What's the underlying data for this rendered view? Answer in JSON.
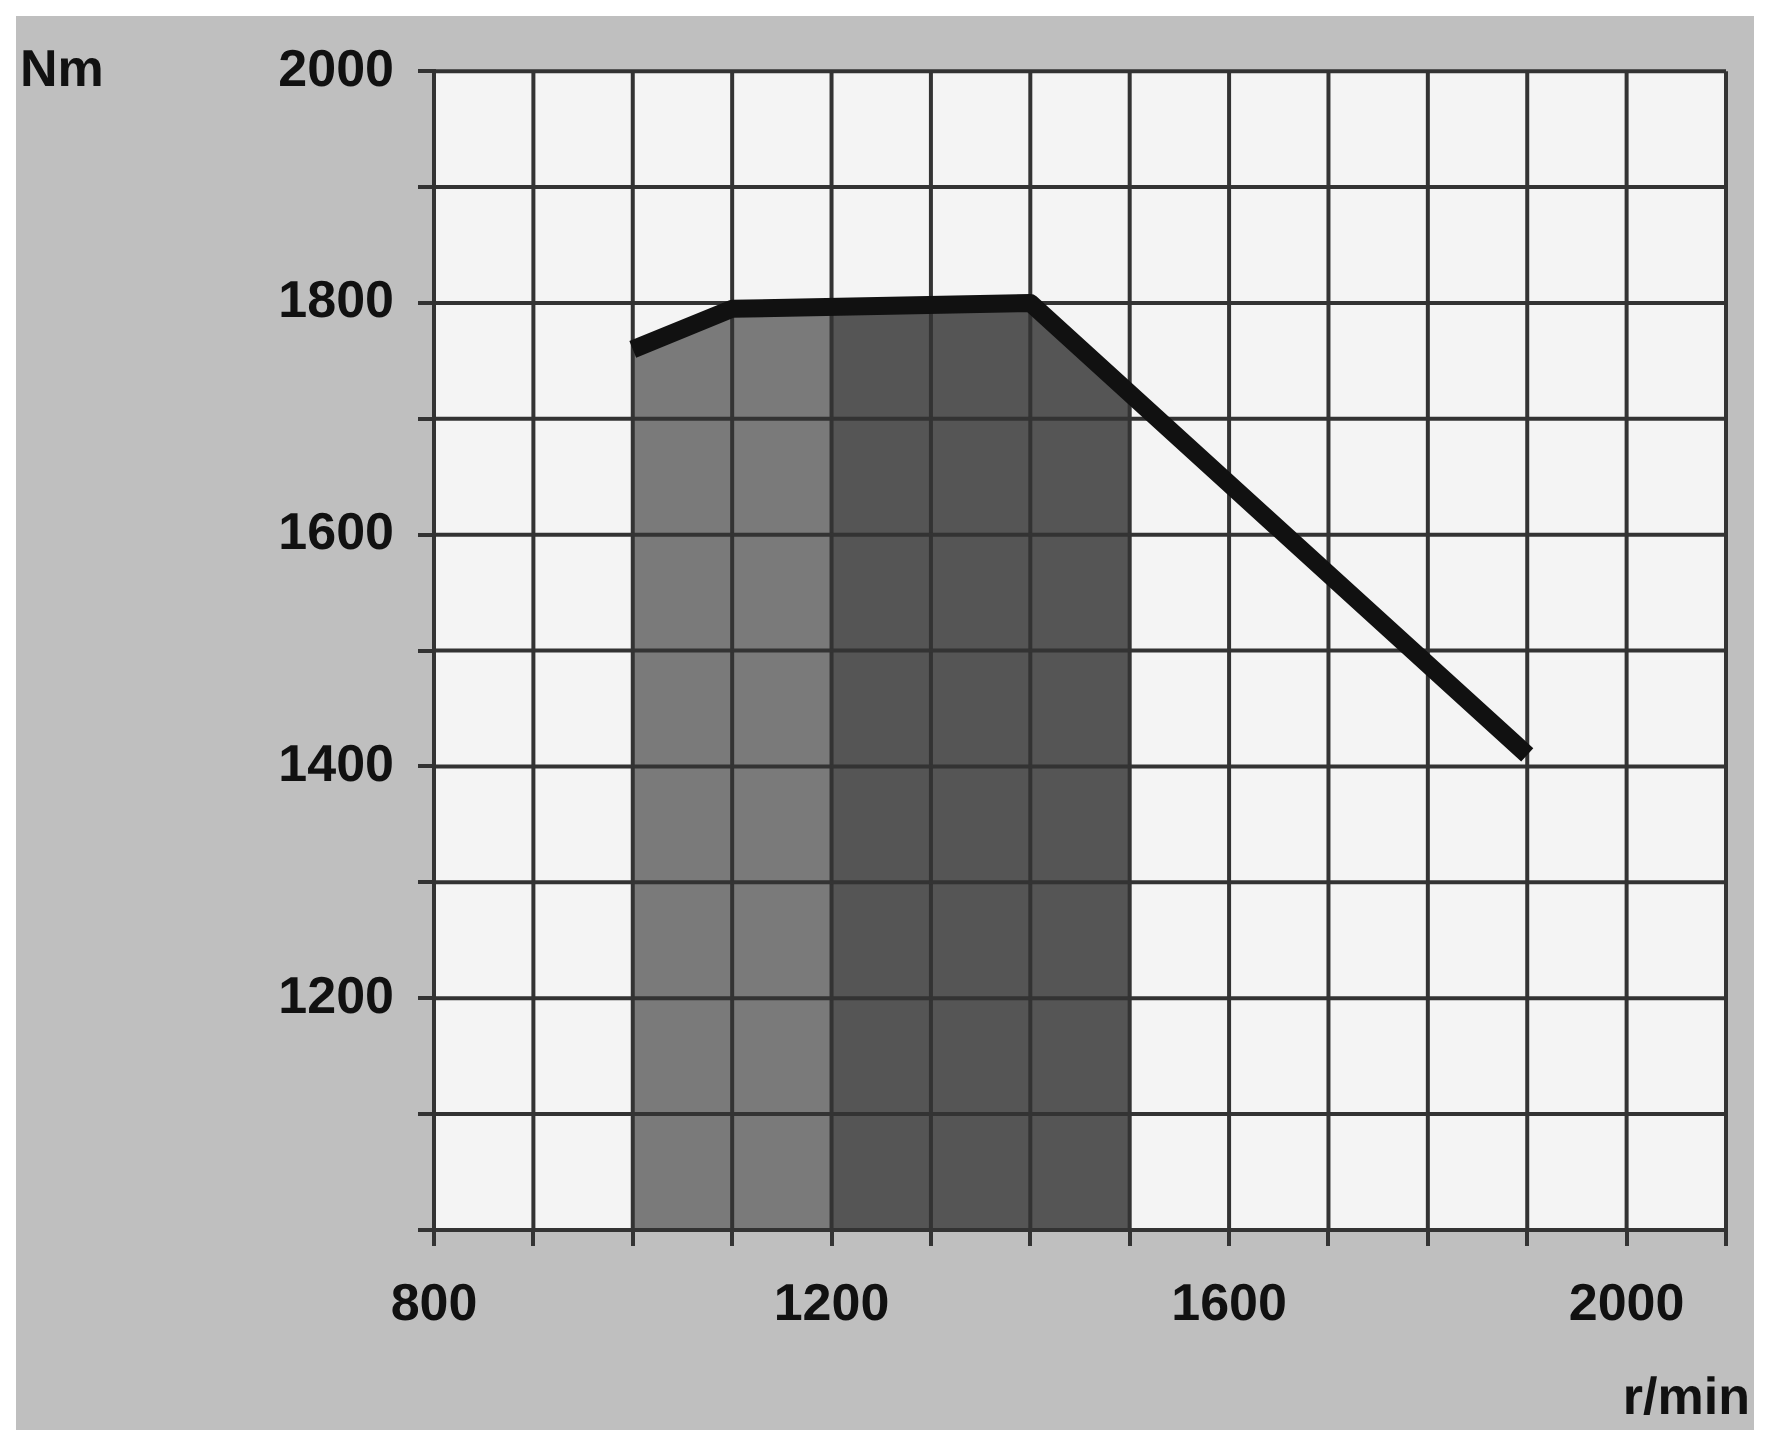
{
  "chart_data": {
    "type": "line",
    "xlabel": "r/min",
    "ylabel": "Nm",
    "x": [
      1000,
      1100,
      1400,
      1900
    ],
    "series": [
      {
        "color": "#111111",
        "values": [
          1760,
          1795,
          1800,
          1410
        ]
      }
    ],
    "xlim": [
      800,
      2100
    ],
    "ylim": [
      1000,
      2000
    ],
    "xticks": [
      800,
      {
        "value": 900,
        "label": null
      },
      {
        "value": 1000,
        "label": null
      },
      {
        "value": 1100,
        "label": null
      },
      1200,
      {
        "value": 1300,
        "label": null
      },
      {
        "value": 1400,
        "label": null
      },
      {
        "value": 1500,
        "label": null
      },
      1600,
      {
        "value": 1700,
        "label": null
      },
      {
        "value": 1800,
        "label": null
      },
      {
        "value": 1900,
        "label": null
      },
      2000,
      {
        "value": 2100,
        "label": null
      }
    ],
    "yticks": [
      {
        "value": 1000,
        "label": null
      },
      {
        "value": 1100,
        "label": null
      },
      1200,
      {
        "value": 1300,
        "label": null
      },
      1400,
      {
        "value": 1500,
        "label": null
      },
      1600,
      {
        "value": 1700,
        "label": null
      },
      1800,
      {
        "value": 1900,
        "label": null
      },
      2000
    ],
    "bands": [
      {
        "axis": "x",
        "from": 1000,
        "to": 1200,
        "color": "#7a7a7a"
      },
      {
        "axis": "x",
        "from": 1200,
        "to": 1500,
        "color": "#555555"
      }
    ],
    "grid": true,
    "legend": false,
    "marker": "none",
    "line_style": "solid"
  }
}
